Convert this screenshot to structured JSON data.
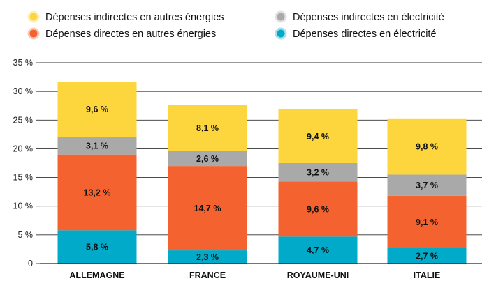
{
  "chart_data": {
    "type": "bar",
    "stacked": true,
    "categories": [
      "ALLEMAGNE",
      "FRANCE",
      "ROYAUME-UNI",
      "ITALIE"
    ],
    "series": [
      {
        "name": "Dépenses directes en électricité",
        "color": "#00aac8",
        "values": [
          5.8,
          2.3,
          4.7,
          2.7
        ],
        "labels": [
          "5,8 %",
          "2,3 %",
          "4,7 %",
          "2,7 %"
        ]
      },
      {
        "name": "Dépenses directes en autres énergies",
        "color": "#f4632f",
        "values": [
          13.2,
          14.7,
          9.6,
          9.1
        ],
        "labels": [
          "13,2 %",
          "14,7 %",
          "9,6 %",
          "9,1 %"
        ]
      },
      {
        "name": "Dépenses indirectes en électricité",
        "color": "#a9a9a9",
        "values": [
          3.1,
          2.6,
          3.2,
          3.7
        ],
        "labels": [
          "3,1 %",
          "2,6 %",
          "3,2 %",
          "3,7 %"
        ]
      },
      {
        "name": "Dépenses indirectes en autres énergies",
        "color": "#fdd53c",
        "values": [
          9.6,
          8.1,
          9.4,
          9.8
        ],
        "labels": [
          "9,6 %",
          "8,1 %",
          "9,4 %",
          "9,8 %"
        ]
      }
    ],
    "legend_order": [
      3,
      2,
      1,
      0
    ],
    "legend_position": "top",
    "ylim": [
      0,
      35
    ],
    "yticks": [
      0,
      5,
      10,
      15,
      20,
      25,
      30,
      35
    ],
    "ytick_labels": [
      "0",
      "5 %",
      "10 %",
      "15 %",
      "20 %",
      "25 %",
      "30 %",
      "35 %"
    ],
    "grid": true,
    "title": "",
    "xlabel": "",
    "ylabel": ""
  }
}
